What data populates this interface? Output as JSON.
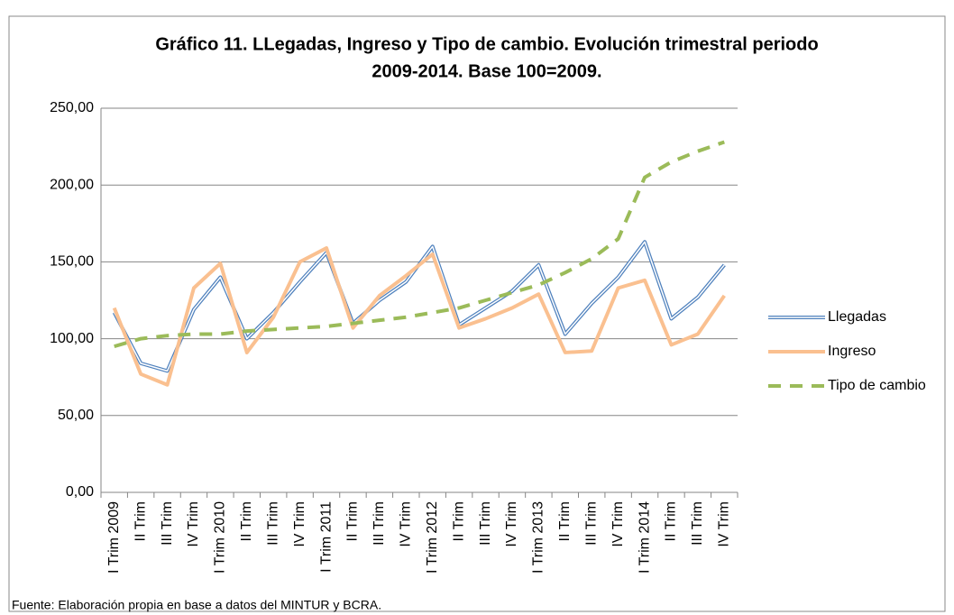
{
  "chart_data": {
    "type": "line",
    "title": [
      "Gráfico 11. LLegadas, Ingreso y Tipo de cambio. Evolución trimestral periodo",
      "2009-2014. Base 100=2009."
    ],
    "categories": [
      "I Trim 2009",
      "II Trim",
      "III Trim",
      "IV Trim",
      "I Trim 2010",
      "II Trim",
      "III Trim",
      "IV Trim",
      "I Trim 2011",
      "II Trim",
      "III Trim",
      "IV Trim",
      "I Trim 2012",
      "II Trim",
      "III Trim",
      "IV Trim",
      "I Trim 2013",
      "II Trim",
      "III Trim",
      "IV Trim",
      "I Trim 2014",
      "II Trim",
      "III Trim",
      "IV Trim"
    ],
    "series": [
      {
        "name": "Llegadas",
        "color": "#4f81bd",
        "values": [
          117,
          84,
          79,
          119,
          140,
          100,
          117,
          137,
          156,
          110,
          125,
          137,
          160,
          109,
          120,
          131,
          148,
          103,
          123,
          140,
          163,
          113,
          127,
          148
        ]
      },
      {
        "name": "Ingreso",
        "color": "#fac090",
        "values": [
          120,
          77,
          70,
          133,
          149,
          91,
          114,
          150,
          159,
          107,
          128,
          141,
          155,
          107,
          113,
          120,
          129,
          91,
          92,
          133,
          138,
          96,
          103,
          128
        ]
      },
      {
        "name": "Tipo de cambio",
        "color": "#9bbb59",
        "values": [
          95,
          100,
          102,
          103,
          103,
          105,
          106,
          107,
          108,
          110,
          112,
          114,
          117,
          120,
          125,
          130,
          135,
          143,
          152,
          165,
          205,
          215,
          222,
          228
        ]
      }
    ],
    "ylim": [
      0,
      250
    ],
    "yticks": [
      {
        "value": 0,
        "label": "0,00"
      },
      {
        "value": 50,
        "label": "50,00"
      },
      {
        "value": 100,
        "label": "100,00"
      },
      {
        "value": 150,
        "label": "150,00"
      },
      {
        "value": 200,
        "label": "200,00"
      },
      {
        "value": 250,
        "label": "250,00"
      }
    ],
    "grid": true,
    "legend": "right",
    "source": "Fuente: Elaboración propia en base a datos del MINTUR y BCRA."
  }
}
